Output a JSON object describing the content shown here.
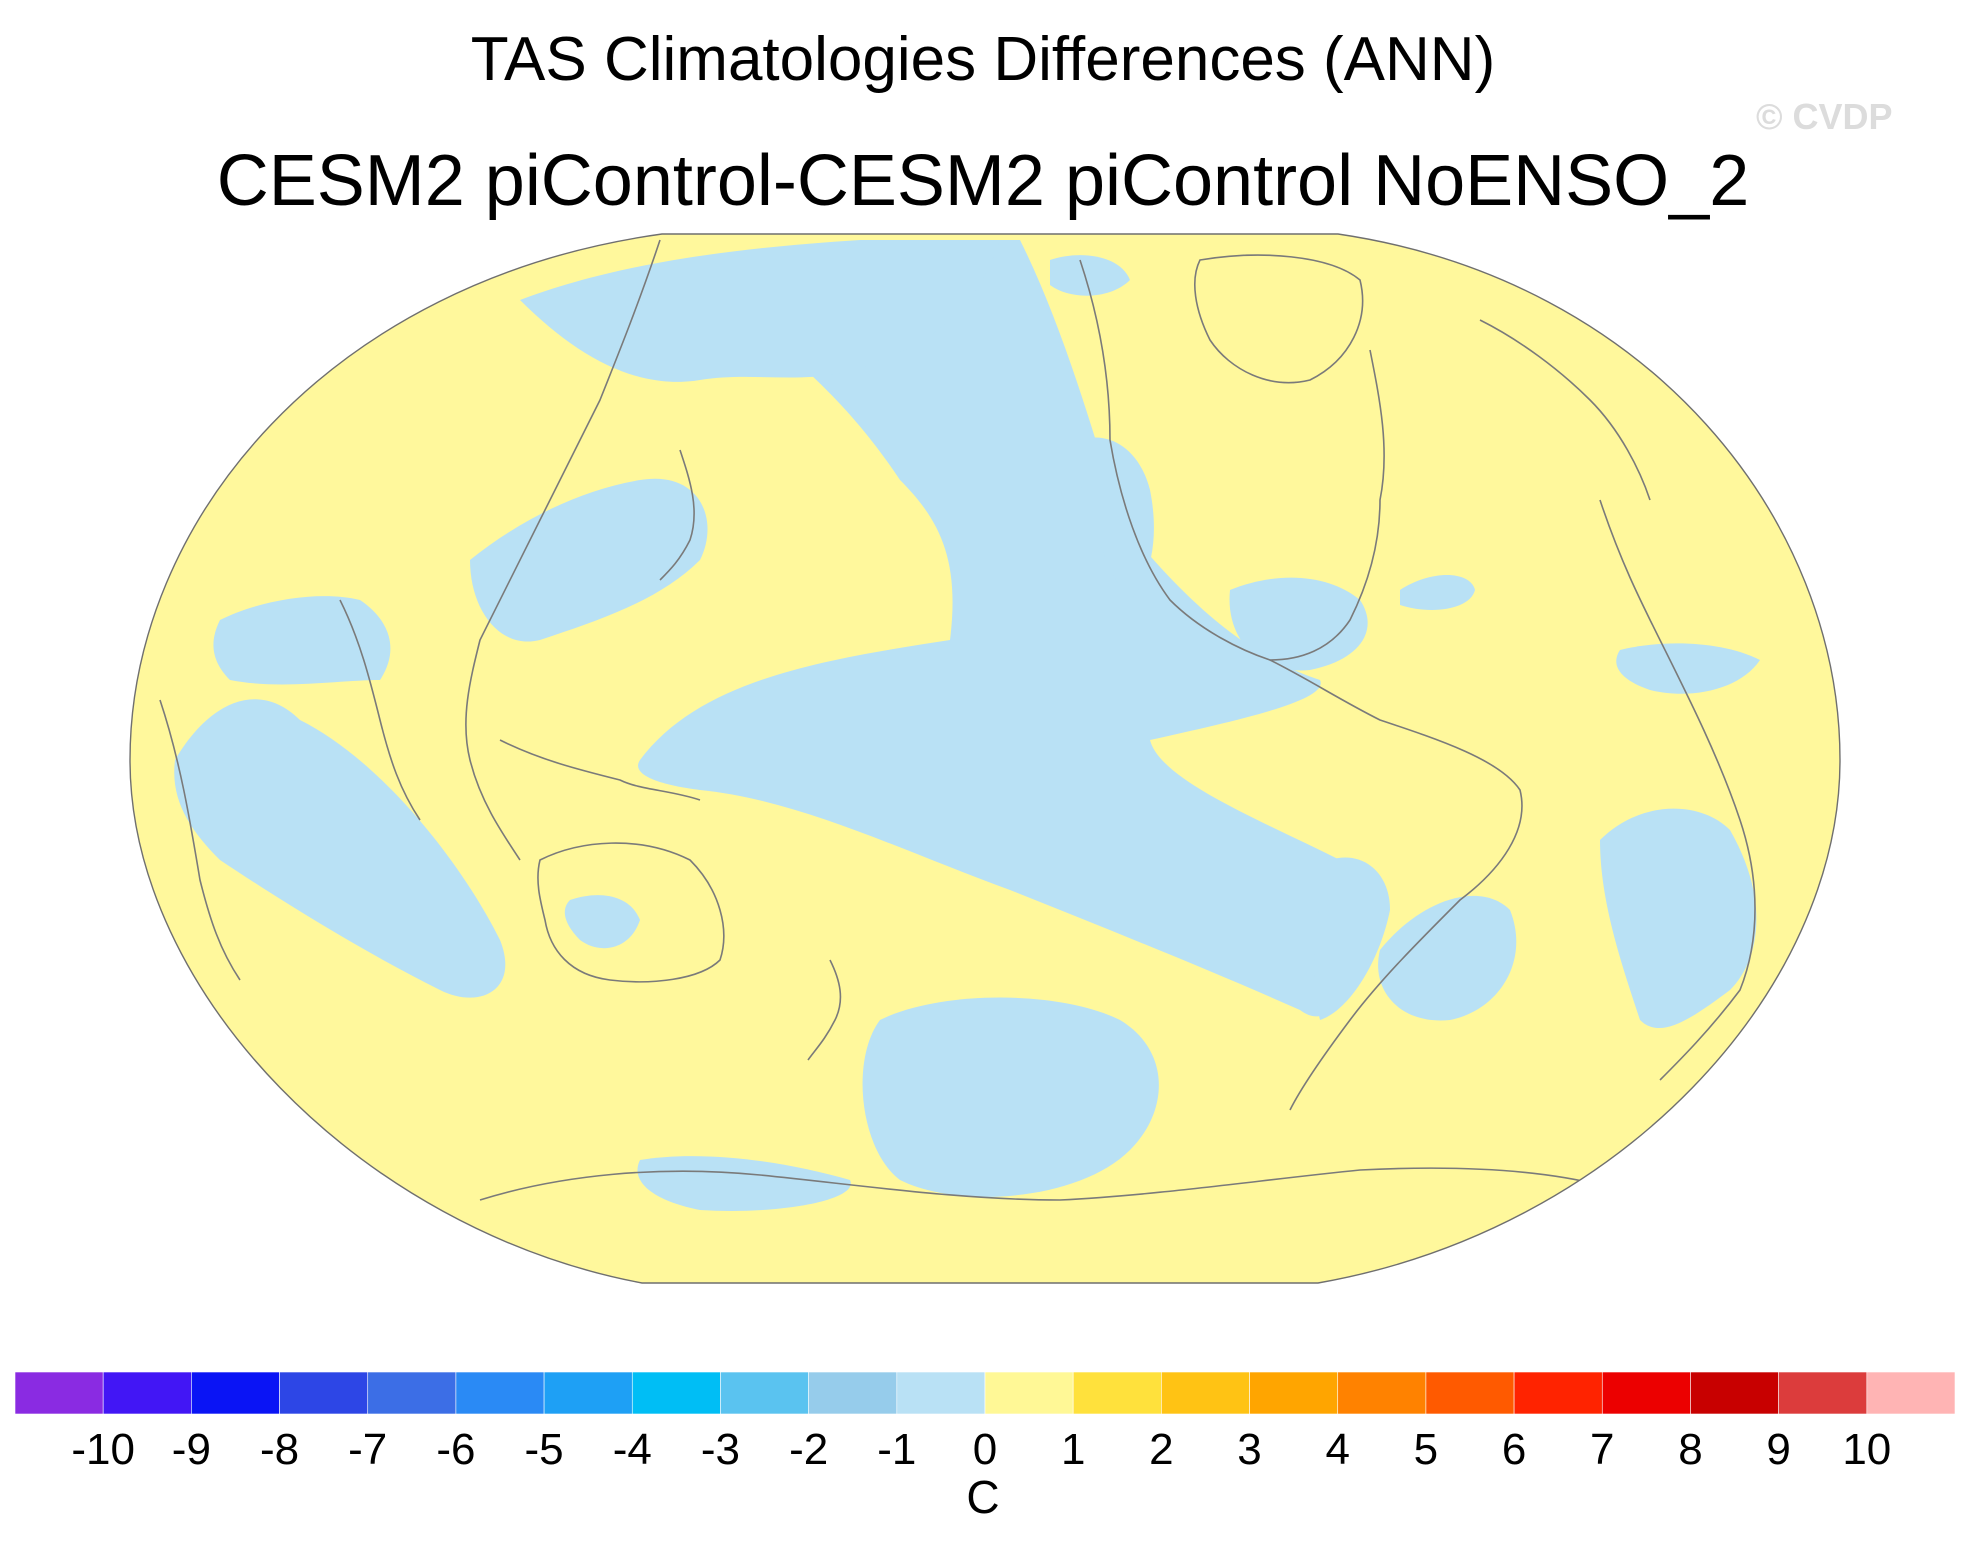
{
  "figure": {
    "title": "TAS Climatologies Differences (ANN)",
    "subtitle": "CESM2 piControl-CESM2 piControl NoENSO_2",
    "credit": "© CVDP"
  },
  "map": {
    "projection": "Robinson",
    "central_longitude": 180,
    "ocean_coastline_color": "#7a7a7a",
    "dominant_fill": "0 to 1 C",
    "secondary_fill": "-1 to 0 C"
  },
  "colorbar": {
    "units": "C",
    "tick_labels": [
      "-10",
      "-9",
      "-8",
      "-7",
      "-6",
      "-5",
      "-4",
      "-3",
      "-2",
      "-1",
      "0",
      "1",
      "2",
      "3",
      "4",
      "5",
      "6",
      "7",
      "8",
      "9",
      "10"
    ],
    "colors": [
      "#8a2be2",
      "#4216f5",
      "#0a14f5",
      "#2d46e6",
      "#3c6ee6",
      "#2a8af5",
      "#1ea0f5",
      "#00bef5",
      "#5ac3f0",
      "#96cceb",
      "#b9e1f5",
      "#fff896",
      "#ffe13c",
      "#ffc314",
      "#ffa500",
      "#ff8200",
      "#ff5a00",
      "#ff2300",
      "#ec0000",
      "#c80000",
      "#dc3c3c",
      "#ffb4b4"
    ]
  }
}
